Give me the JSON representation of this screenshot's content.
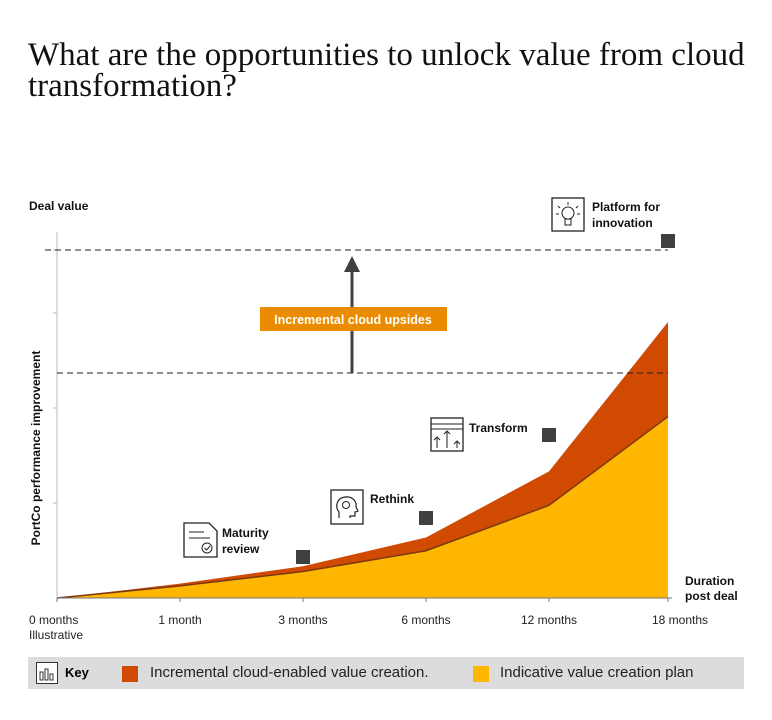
{
  "title": "What are the opportunities to unlock value from cloud transformation?",
  "colors": {
    "incremental": "#d04a02",
    "indicative": "#ffb600",
    "marker": "#404041",
    "banner": "#eb8c00"
  },
  "chart_data": {
    "type": "area",
    "y_axis_top_label": "Deal value",
    "ylabel": "PortCo performance improvement",
    "xlabel": "Duration post deal",
    "categories": [
      "0 months",
      "1 month",
      "3 months",
      "6 months",
      "12 months",
      "18 months"
    ],
    "x_sublabel": "Illustrative",
    "series": [
      {
        "name": "Indicative value creation plan",
        "values": [
          0,
          3.2,
          7.0,
          12.5,
          24.5,
          48.0
        ]
      },
      {
        "name": "Incremental cloud-enabled value creation.",
        "values": [
          0,
          0.6,
          1.4,
          3.5,
          9.0,
          25.0
        ]
      }
    ],
    "milestones": [
      {
        "label": "Maturity review",
        "category_index": 2,
        "icon": "checklist-doc-icon"
      },
      {
        "label": "Rethink",
        "category_index": 3,
        "icon": "head-gear-icon"
      },
      {
        "label": "Transform",
        "category_index": 4,
        "icon": "chart-arrows-icon"
      },
      {
        "label": "Platform for innovation",
        "category_index": 5,
        "icon": "lightbulb-icon"
      }
    ],
    "annotation": "Incremental cloud upsides",
    "reference_lines": [
      48.0,
      73.0
    ],
    "grid": false
  },
  "key": {
    "label": "Key",
    "items": [
      {
        "text": "Incremental cloud-enabled value creation.",
        "color": "#d04a02"
      },
      {
        "text": "Indicative value creation plan",
        "color": "#ffb600"
      }
    ]
  }
}
